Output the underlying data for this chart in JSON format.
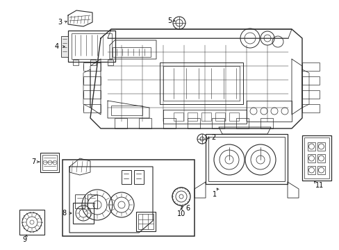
{
  "bg_color": "#ffffff",
  "line_color": "#2a2a2a",
  "label_color": "#000000",
  "fig_w": 4.89,
  "fig_h": 3.6,
  "dpi": 100
}
